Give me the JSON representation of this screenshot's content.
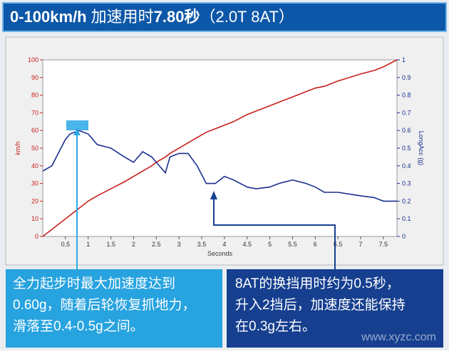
{
  "chart_data": {
    "type": "line",
    "title_parts": [
      "0-100km/h",
      "加速用时",
      "7.80秒",
      "（2.0T 8AT）"
    ],
    "x_label": "Seconds",
    "y_label": "km/h",
    "y2_label": "LongAcc (g)",
    "x": [
      0,
      0.2,
      0.4,
      0.5,
      0.6,
      0.8,
      1,
      1.2,
      1.5,
      1.8,
      2,
      2.2,
      2.4,
      2.5,
      2.7,
      2.8,
      3,
      3.2,
      3.4,
      3.6,
      3.8,
      4,
      4.2,
      4.5,
      4.7,
      5,
      5.2,
      5.5,
      5.8,
      6,
      6.2,
      6.5,
      7,
      7.3,
      7.5,
      7.8
    ],
    "series": [
      {
        "name": "km/h",
        "color": "#c8201c",
        "values": [
          0,
          4,
          8,
          10,
          12,
          16,
          20,
          23,
          27,
          31,
          34,
          37,
          40,
          42,
          45,
          47,
          50,
          53,
          56,
          59,
          61,
          63,
          65,
          69,
          71,
          74,
          76,
          79,
          82,
          84,
          85,
          88,
          92,
          94,
          96,
          100
        ]
      },
      {
        "name": "LongAcc (g)",
        "color": "#1a2f8f",
        "axis": "y2",
        "values": [
          0.37,
          0.4,
          0.5,
          0.55,
          0.58,
          0.6,
          0.58,
          0.52,
          0.5,
          0.45,
          0.42,
          0.48,
          0.45,
          0.42,
          0.36,
          0.45,
          0.47,
          0.47,
          0.4,
          0.3,
          0.3,
          0.34,
          0.32,
          0.28,
          0.27,
          0.28,
          0.3,
          0.32,
          0.3,
          0.28,
          0.25,
          0.25,
          0.23,
          0.22,
          0.2,
          0.2
        ]
      }
    ],
    "xlim": [
      0,
      7.8
    ],
    "xticks": [
      0.5,
      1,
      1.5,
      2,
      2.5,
      3,
      3.5,
      4,
      4.5,
      5,
      5.5,
      6,
      6.5,
      7,
      7.5
    ],
    "ylim": [
      0,
      100
    ],
    "yticks": [
      0,
      10,
      20,
      30,
      40,
      50,
      60,
      70,
      80,
      90,
      100
    ],
    "y2lim": [
      0,
      1
    ],
    "y2ticks": [
      0,
      0.1,
      0.2,
      0.3,
      0.4,
      0.5,
      0.6,
      0.7,
      0.8,
      0.9,
      1
    ],
    "grid": false,
    "annotations": [
      [
        "全力起步时最大加速度达到",
        "0.60g，随着后轮恢复抓地力，",
        "滑落至0.4-0.5g之间。"
      ],
      [
        "8AT的换挡用时约为0.5秒，",
        "升入2挡后，加速度还能保持",
        "在0.3g左右。"
      ]
    ],
    "watermark": "www.xyzc.com"
  }
}
